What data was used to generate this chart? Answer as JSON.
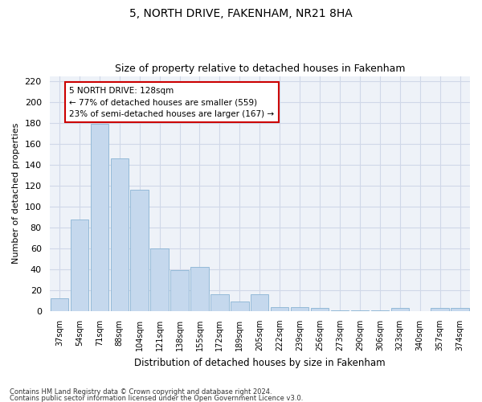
{
  "title": "5, NORTH DRIVE, FAKENHAM, NR21 8HA",
  "subtitle": "Size of property relative to detached houses in Fakenham",
  "xlabel": "Distribution of detached houses by size in Fakenham",
  "ylabel": "Number of detached properties",
  "categories": [
    "37sqm",
    "54sqm",
    "71sqm",
    "88sqm",
    "104sqm",
    "121sqm",
    "138sqm",
    "155sqm",
    "172sqm",
    "189sqm",
    "205sqm",
    "222sqm",
    "239sqm",
    "256sqm",
    "273sqm",
    "290sqm",
    "306sqm",
    "323sqm",
    "340sqm",
    "357sqm",
    "374sqm"
  ],
  "values": [
    12,
    88,
    179,
    146,
    116,
    60,
    39,
    42,
    16,
    9,
    16,
    4,
    4,
    3,
    1,
    1,
    1,
    3,
    0,
    3,
    3
  ],
  "bar_color": "#c5d8ed",
  "bar_edge_color": "#8ab4d4",
  "subject_label": "5 NORTH DRIVE: 128sqm",
  "annotation_line1": "← 77% of detached houses are smaller (559)",
  "annotation_line2": "23% of semi-detached houses are larger (167) →",
  "annotation_box_color": "#ffffff",
  "annotation_box_edge": "#cc0000",
  "ylim": [
    0,
    225
  ],
  "yticks": [
    0,
    20,
    40,
    60,
    80,
    100,
    120,
    140,
    160,
    180,
    200,
    220
  ],
  "grid_color": "#d0d8e8",
  "background_color": "#eef2f8",
  "fig_background": "#ffffff",
  "title_fontsize": 10,
  "subtitle_fontsize": 9,
  "footnote1": "Contains HM Land Registry data © Crown copyright and database right 2024.",
  "footnote2": "Contains public sector information licensed under the Open Government Licence v3.0."
}
